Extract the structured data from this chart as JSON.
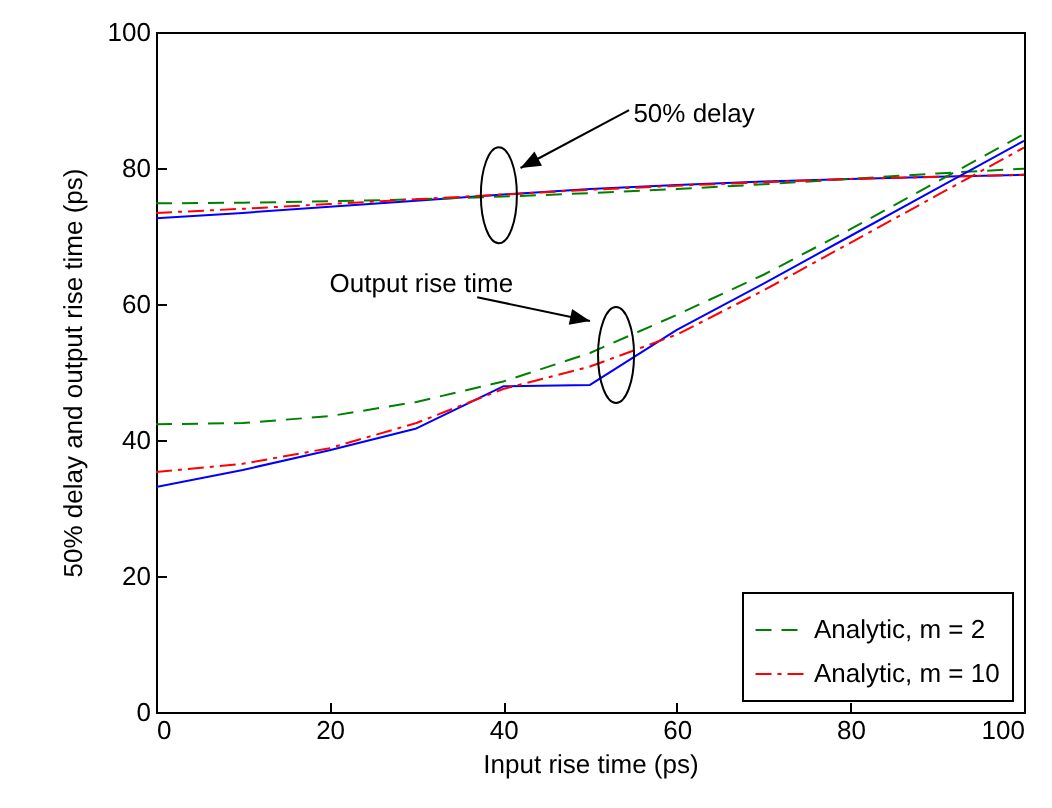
{
  "chart_data": {
    "type": "line",
    "xlabel": "Input rise time (ps)",
    "ylabel": "50% delay and output rise time (ps)",
    "x": [
      0,
      10,
      20,
      30,
      40,
      50,
      60,
      70,
      80,
      90,
      100
    ],
    "xlim": [
      0,
      100
    ],
    "xticks": [
      0,
      20,
      40,
      60,
      80,
      100
    ],
    "ylim": [
      0,
      100
    ],
    "yticks": [
      0,
      20,
      40,
      60,
      80,
      100
    ],
    "grid": false,
    "legend": "bottom right",
    "marker": "none",
    "annotations": [
      "50% delay",
      "Output rise time"
    ],
    "series": [
      {
        "color": "#0000ff",
        "line_style": "solid",
        "values": [
          72.6,
          73.4,
          74.3,
          75.2,
          76.1,
          76.9,
          77.5,
          78.0,
          78.4,
          78.7,
          79.0
        ]
      },
      {
        "name": "Analytic, m = 2",
        "color": "#008000",
        "line_style": "dashed",
        "values": [
          74.8,
          74.9,
          75.1,
          75.4,
          75.8,
          76.3,
          76.9,
          77.6,
          78.4,
          79.2,
          79.9
        ]
      },
      {
        "name": "Analytic, m = 10",
        "color": "#ff0000",
        "line_style": "dashdot",
        "values": [
          73.4,
          74.0,
          74.7,
          75.4,
          76.1,
          76.8,
          77.4,
          77.9,
          78.4,
          78.7,
          79.0
        ]
      },
      {
        "color": "#0000ff",
        "line_style": "solid",
        "values": [
          33.1,
          35.6,
          38.5,
          41.7,
          47.9,
          48.1,
          56.2,
          63.0,
          70.0,
          77.0,
          84.0
        ]
      },
      {
        "color": "#008000",
        "line_style": "dashed",
        "values": [
          42.3,
          42.5,
          43.5,
          45.6,
          48.6,
          52.8,
          58.4,
          64.3,
          71.0,
          78.0,
          85.0
        ]
      },
      {
        "color": "#ff0000",
        "line_style": "dashdot",
        "values": [
          35.3,
          36.5,
          38.8,
          42.5,
          47.5,
          50.8,
          55.5,
          62.0,
          69.0,
          76.0,
          83.0
        ]
      }
    ]
  }
}
